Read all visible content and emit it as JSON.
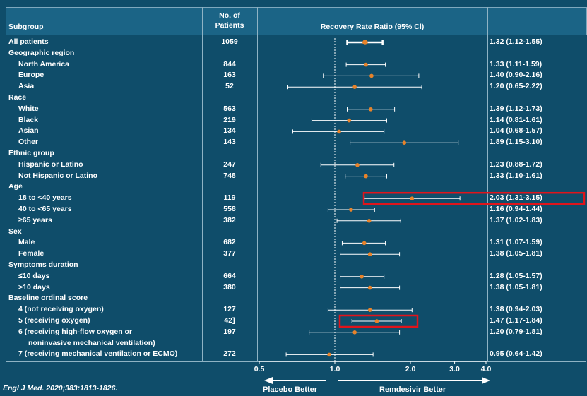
{
  "header": {
    "subgroup": "Subgroup",
    "patients_line1": "No. of",
    "patients_line2": "Patients",
    "ratio": "Recovery Rate Ratio (95% Cl)"
  },
  "rows": [
    {
      "label": "All patients",
      "n": "1059",
      "ci": "1.32 (1.12-1.55)",
      "indent": false,
      "est": 1.32,
      "lo": 1.12,
      "hi": 1.55,
      "overall": true
    },
    {
      "label": "Geographic region",
      "indent": false,
      "heading": true
    },
    {
      "label": "North America",
      "n": "844",
      "ci": "1.33 (1.11-1.59)",
      "indent": true,
      "est": 1.33,
      "lo": 1.11,
      "hi": 1.59
    },
    {
      "label": "Europe",
      "n": "163",
      "ci": "1.40 (0.90-2.16)",
      "indent": true,
      "est": 1.4,
      "lo": 0.9,
      "hi": 2.16
    },
    {
      "label": "Asia",
      "n": "52",
      "ci": "1.20 (0.65-2.22)",
      "indent": true,
      "est": 1.2,
      "lo": 0.65,
      "hi": 2.22
    },
    {
      "label": "Race",
      "indent": false,
      "heading": true
    },
    {
      "label": "White",
      "n": "563",
      "ci": "1.39 (1.12-1.73)",
      "indent": true,
      "est": 1.39,
      "lo": 1.12,
      "hi": 1.73
    },
    {
      "label": "Black",
      "n": "219",
      "ci": "1.14 (0.81-1.61)",
      "indent": true,
      "est": 1.14,
      "lo": 0.81,
      "hi": 1.61
    },
    {
      "label": "Asian",
      "n": "134",
      "ci": "1.04 (0.68-1.57)",
      "indent": true,
      "est": 1.04,
      "lo": 0.68,
      "hi": 1.57
    },
    {
      "label": "Other",
      "n": "143",
      "ci": "1.89 (1.15-3.10)",
      "indent": true,
      "est": 1.89,
      "lo": 1.15,
      "hi": 3.1
    },
    {
      "label": "Ethnic group",
      "indent": false,
      "heading": true
    },
    {
      "label": "Hispanic or Latino",
      "n": "247",
      "ci": "1.23 (0.88-1.72)",
      "indent": true,
      "est": 1.23,
      "lo": 0.88,
      "hi": 1.72
    },
    {
      "label": "Not Hispanic or Latino",
      "n": "748",
      "ci": "1.33 (1.10-1.61)",
      "indent": true,
      "est": 1.33,
      "lo": 1.1,
      "hi": 1.61
    },
    {
      "label": "Age",
      "indent": false,
      "heading": true
    },
    {
      "label": "18 to <40 years",
      "n": "119",
      "ci": "2.03 (1.31-3.15)",
      "indent": true,
      "est": 2.03,
      "lo": 1.31,
      "hi": 3.15,
      "highlight": true
    },
    {
      "label": "40 to <65 years",
      "n": "558",
      "ci": "1.16 (0.94-1.44)",
      "indent": true,
      "est": 1.16,
      "lo": 0.94,
      "hi": 1.44
    },
    {
      "label": "≥65 years",
      "n": "382",
      "ci": "1.37 (1.02-1.83)",
      "indent": true,
      "est": 1.37,
      "lo": 1.02,
      "hi": 1.83
    },
    {
      "label": "Sex",
      "indent": false,
      "heading": true
    },
    {
      "label": "Male",
      "n": "682",
      "ci": "1.31 (1.07-1.59)",
      "indent": true,
      "est": 1.31,
      "lo": 1.07,
      "hi": 1.59
    },
    {
      "label": "Female",
      "n": "377",
      "ci": "1.38 (1.05-1.81)",
      "indent": true,
      "est": 1.38,
      "lo": 1.05,
      "hi": 1.81
    },
    {
      "label": "Symptoms duration",
      "indent": false,
      "heading": true
    },
    {
      "label": "≤10 days",
      "n": "664",
      "ci": "1.28 (1.05-1.57)",
      "indent": true,
      "est": 1.28,
      "lo": 1.05,
      "hi": 1.57
    },
    {
      "label": ">10 days",
      "n": "380",
      "ci": "1.38 (1.05-1.81)",
      "indent": true,
      "est": 1.38,
      "lo": 1.05,
      "hi": 1.81
    },
    {
      "label": "Baseline ordinal score",
      "indent": false,
      "heading": true
    },
    {
      "label": "4 (not receiving oxygen)",
      "n": "127",
      "ci": "1.38 (0.94-2.03)",
      "indent": true,
      "est": 1.38,
      "lo": 0.94,
      "hi": 2.03
    },
    {
      "label": "5 (receiving oxygen)",
      "n": "42]",
      "ci": "1.47 (1.17-1.84)",
      "indent": true,
      "est": 1.47,
      "lo": 1.17,
      "hi": 1.84,
      "box": true
    },
    {
      "label": "6 (receiving high-flow oxygen or",
      "n": "197",
      "ci": "1.20 (0.79-1.81)",
      "indent": true,
      "est": 1.2,
      "lo": 0.79,
      "hi": 1.81
    },
    {
      "label": "noninvasive mechanical ventilation)",
      "indent": true,
      "continuation": true
    },
    {
      "label": "7 (receiving mechanical ventilation or ECMO)",
      "n": "272",
      "ci": "0.95 (0.64-1.42)",
      "indent": true,
      "est": 0.95,
      "lo": 0.64,
      "hi": 1.42
    }
  ],
  "chart_data": {
    "type": "forest",
    "title": "Recovery Rate Ratio (95% Cl)",
    "scale": "log",
    "xlim": [
      0.5,
      4.0
    ],
    "reference_line": 1.0,
    "x_ticks": [
      "0.5",
      "1.0",
      "2.0",
      "3.0",
      "4.0"
    ],
    "x_tick_values": [
      0.5,
      1.0,
      2.0,
      3.0,
      4.0
    ],
    "favors_left": "Placebo Better",
    "favors_right": "Remdesivir Better",
    "series_color": "#e8832a"
  },
  "citation_journal": "Engl J Med.",
  "citation_rest": " 2020;383:1813-1826."
}
